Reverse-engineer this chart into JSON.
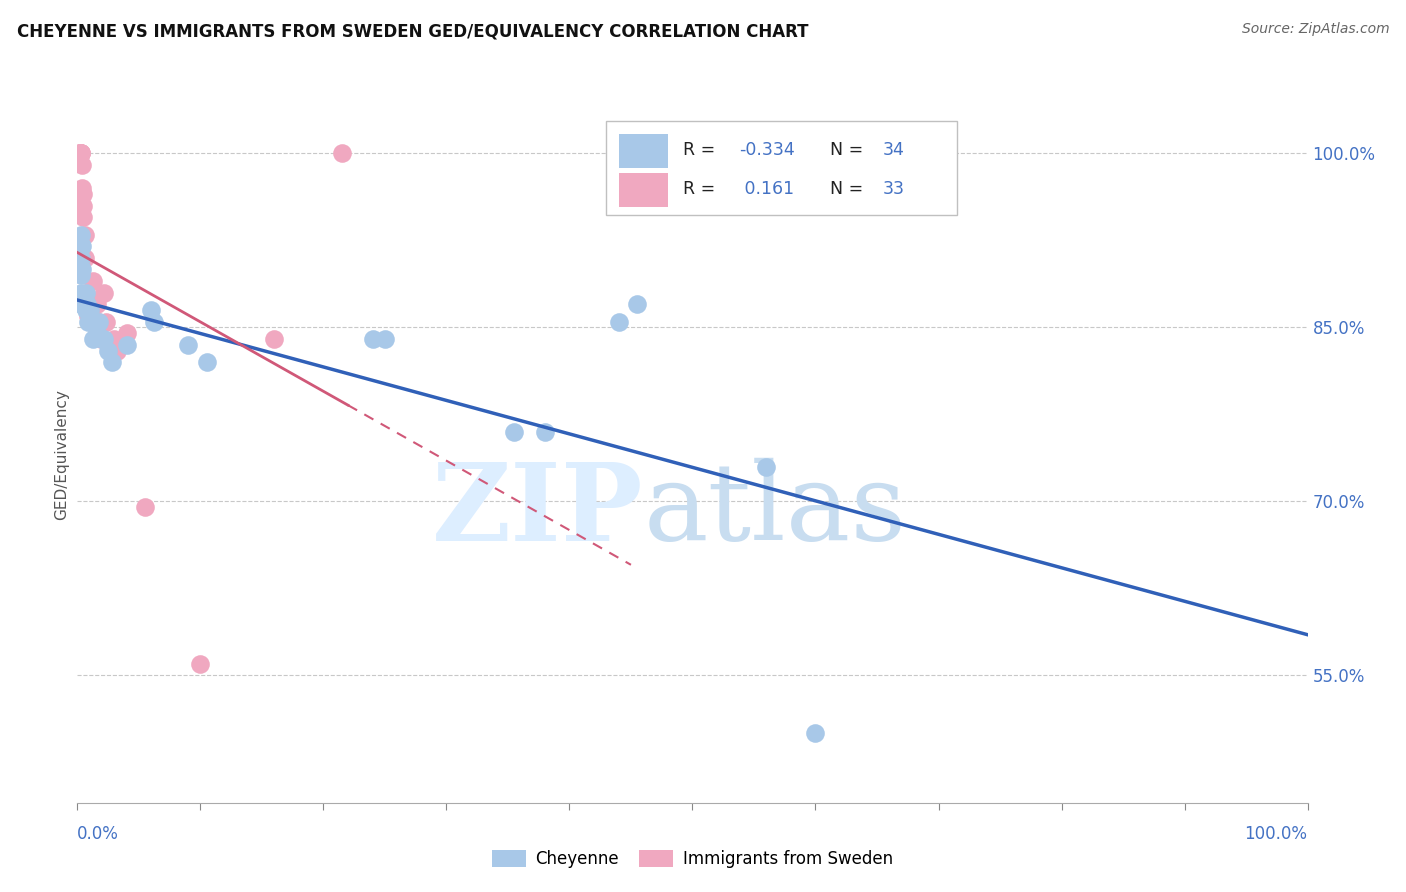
{
  "title": "CHEYENNE VS IMMIGRANTS FROM SWEDEN GED/EQUIVALENCY CORRELATION CHART",
  "source": "Source: ZipAtlas.com",
  "ylabel": "GED/Equivalency",
  "r_cheyenne": -0.334,
  "n_cheyenne": 34,
  "r_sweden": 0.161,
  "n_sweden": 33,
  "cheyenne_color": "#a8c8e8",
  "sweden_color": "#f0a8c0",
  "trend_cheyenne_color": "#3060b8",
  "trend_sweden_color": "#d05878",
  "label_color": "#4472c4",
  "xlim": [
    0.0,
    1.0
  ],
  "ylim": [
    0.44,
    1.04
  ],
  "yticks": [
    0.55,
    0.7,
    0.85,
    1.0
  ],
  "ytick_labels": [
    "55.0%",
    "70.0%",
    "85.0%",
    "100.0%"
  ],
  "cheyenne_x": [
    0.003,
    0.003,
    0.003,
    0.003,
    0.003,
    0.004,
    0.004,
    0.007,
    0.007,
    0.008,
    0.009,
    0.01,
    0.012,
    0.013,
    0.015,
    0.016,
    0.018,
    0.02,
    0.022,
    0.025,
    0.028,
    0.04,
    0.06,
    0.062,
    0.09,
    0.105,
    0.24,
    0.25,
    0.355,
    0.38,
    0.44,
    0.455,
    0.56,
    0.6
  ],
  "cheyenne_y": [
    0.93,
    0.91,
    0.895,
    0.88,
    0.87,
    0.92,
    0.9,
    0.88,
    0.865,
    0.87,
    0.855,
    0.865,
    0.855,
    0.84,
    0.855,
    0.845,
    0.855,
    0.84,
    0.84,
    0.83,
    0.82,
    0.835,
    0.865,
    0.855,
    0.835,
    0.82,
    0.84,
    0.84,
    0.76,
    0.76,
    0.855,
    0.87,
    0.73,
    0.5
  ],
  "sweden_x": [
    0.002,
    0.002,
    0.002,
    0.002,
    0.003,
    0.003,
    0.003,
    0.004,
    0.004,
    0.005,
    0.005,
    0.005,
    0.006,
    0.006,
    0.007,
    0.008,
    0.009,
    0.01,
    0.011,
    0.013,
    0.014,
    0.016,
    0.018,
    0.019,
    0.022,
    0.023,
    0.03,
    0.032,
    0.04,
    0.055,
    0.1,
    0.16,
    0.215
  ],
  "sweden_y": [
    1.0,
    1.0,
    1.0,
    1.0,
    1.0,
    1.0,
    1.0,
    0.99,
    0.97,
    0.965,
    0.955,
    0.945,
    0.93,
    0.91,
    0.88,
    0.875,
    0.86,
    0.865,
    0.855,
    0.89,
    0.87,
    0.87,
    0.855,
    0.84,
    0.88,
    0.855,
    0.84,
    0.83,
    0.845,
    0.695,
    0.56,
    0.84,
    1.0
  ]
}
